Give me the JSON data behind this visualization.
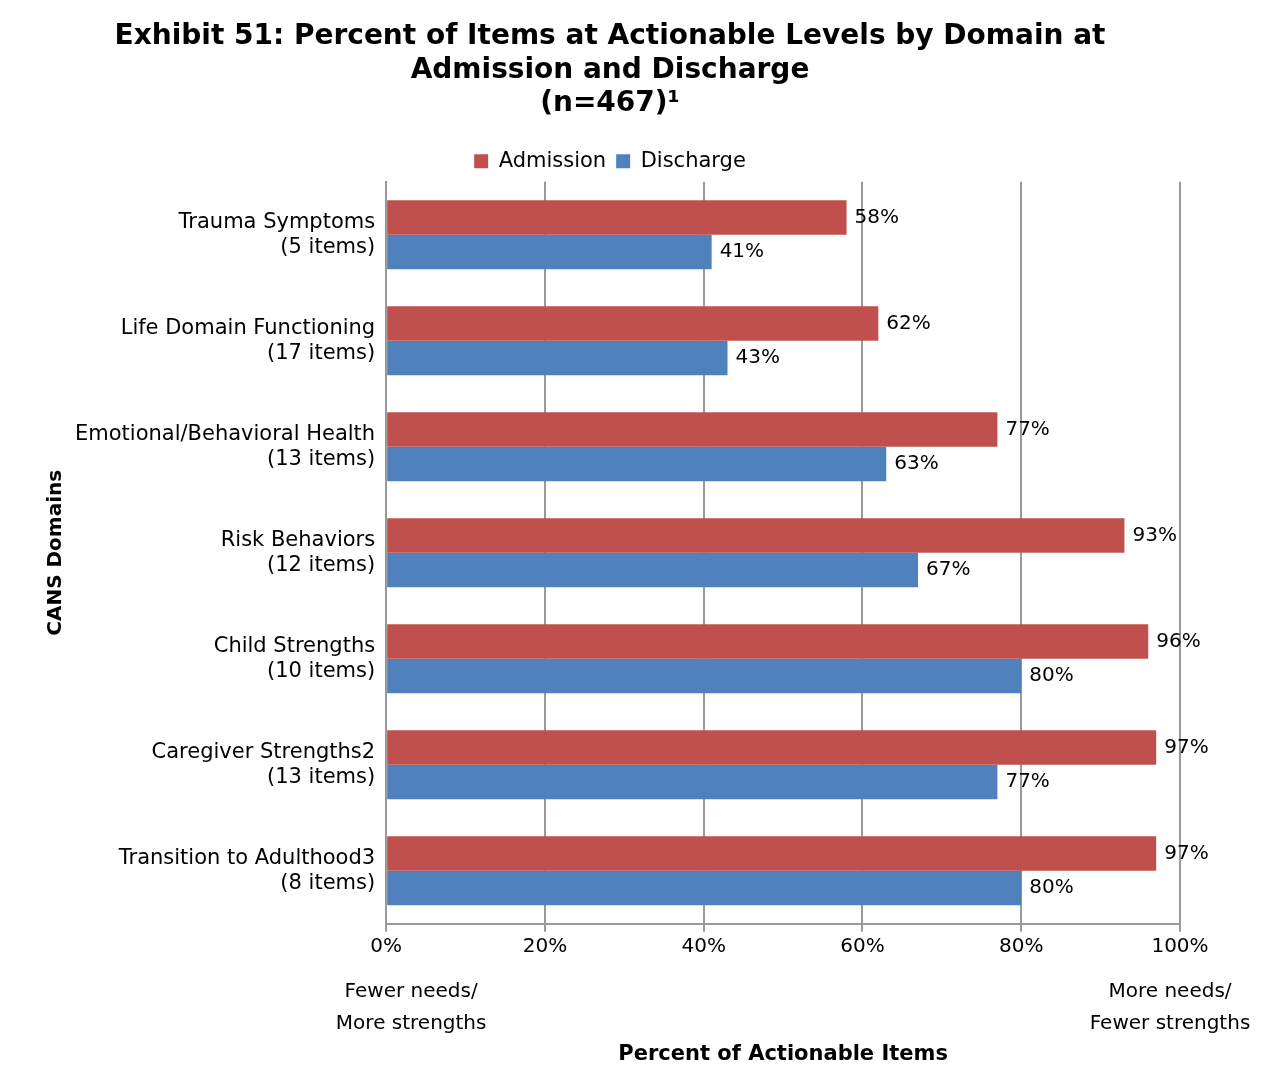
{
  "chart_data": {
    "type": "bar",
    "orientation": "horizontal",
    "title": "Exhibit 51: Percent of Items at Actionable Levels by Domain at\nAdmission and Discharge\n(n=467)¹",
    "xlabel": "Percent of Actionable Items",
    "ylabel": "CANS Domains",
    "categories": [
      "Trauma Symptoms\n(5 items)",
      "Life Domain Functioning\n(17 items)",
      "Emotional/Behavioral Health\n(13 items)",
      "Risk Behaviors\n(12 items)",
      "Child Strengths\n(10 items)",
      "Caregiver Strengths2\n(13 items)",
      "Transition to Adulthood3\n(8 items)"
    ],
    "series": [
      {
        "name": "Admission",
        "color": "#c0504d",
        "values": [
          58,
          62,
          77,
          93,
          96,
          97,
          97
        ],
        "value_labels": [
          "58%",
          "62%",
          "77%",
          "93%",
          "96%",
          "97%",
          "97%"
        ]
      },
      {
        "name": "Discharge",
        "color": "#4f81bd",
        "values": [
          41,
          43,
          63,
          67,
          80,
          77,
          80
        ],
        "value_labels": [
          "41%",
          "43%",
          "63%",
          "67%",
          "80%",
          "77%",
          "80%"
        ]
      }
    ],
    "xlim": [
      0,
      100
    ],
    "xticks": [
      {
        "value": 0,
        "label": "0%"
      },
      {
        "value": 20,
        "label": "20%"
      },
      {
        "value": 40,
        "label": "40%"
      },
      {
        "value": 60,
        "label": "60%"
      },
      {
        "value": 80,
        "label": "80%"
      },
      {
        "value": 100,
        "label": "100%"
      }
    ],
    "grid": "x",
    "legend": "top",
    "annotations": [
      "Fewer needs/\nMore strengths",
      "More needs/\nFewer strengths"
    ]
  }
}
